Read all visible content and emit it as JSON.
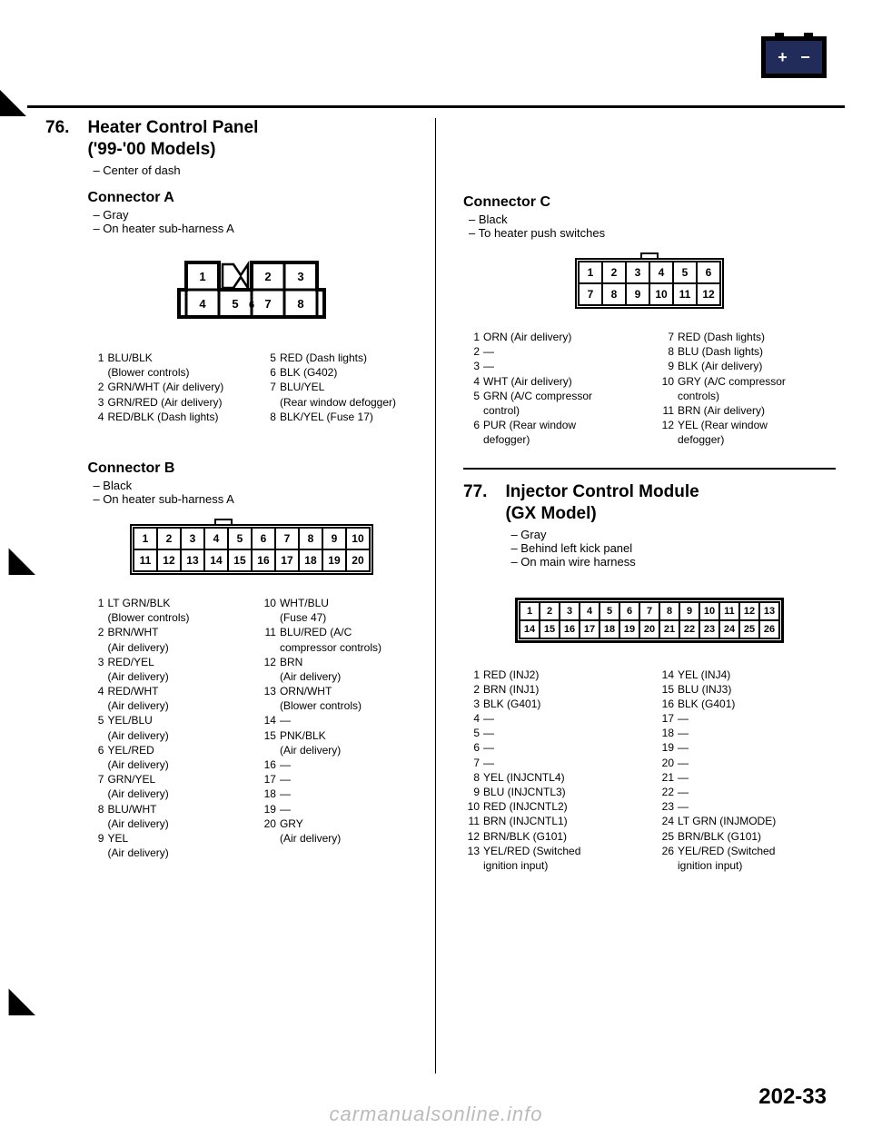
{
  "page_number": "202-33",
  "watermark": "carmanualsonline.info",
  "section76": {
    "num": "76.",
    "title": "Heater Control Panel",
    "subtitle": "('99-'00 Models)",
    "bullet1": "– Center of dash",
    "connA": {
      "title": "Connector A",
      "b1": "– Gray",
      "b2": "– On heater sub-harness A",
      "cells": [
        "1",
        "",
        "2",
        "3",
        "4",
        "5",
        "6",
        "7",
        "8"
      ],
      "left": [
        {
          "n": "1",
          "l": "BLU/BLK",
          "s": "(Blower controls)"
        },
        {
          "n": "2",
          "l": "GRN/WHT (Air delivery)"
        },
        {
          "n": "3",
          "l": "GRN/RED (Air delivery)"
        },
        {
          "n": "4",
          "l": "RED/BLK (Dash lights)"
        }
      ],
      "right": [
        {
          "n": "5",
          "l": "RED (Dash lights)"
        },
        {
          "n": "6",
          "l": "BLK (G402)"
        },
        {
          "n": "7",
          "l": "BLU/YEL",
          "s": "(Rear window defogger)"
        },
        {
          "n": "8",
          "l": "BLK/YEL (Fuse 17)"
        }
      ]
    },
    "connB": {
      "title": "Connector B",
      "b1": "– Black",
      "b2": "– On heater sub-harness A",
      "row1": [
        "1",
        "2",
        "3",
        "4",
        "5",
        "6",
        "7",
        "8",
        "9",
        "10"
      ],
      "row2": [
        "11",
        "12",
        "13",
        "14",
        "15",
        "16",
        "17",
        "18",
        "19",
        "20"
      ],
      "left": [
        {
          "n": "1",
          "l": "LT GRN/BLK",
          "s": "(Blower controls)"
        },
        {
          "n": "2",
          "l": "BRN/WHT",
          "s": "(Air delivery)"
        },
        {
          "n": "3",
          "l": "RED/YEL",
          "s": "(Air delivery)"
        },
        {
          "n": "4",
          "l": "RED/WHT",
          "s": "(Air delivery)"
        },
        {
          "n": "5",
          "l": "YEL/BLU",
          "s": "(Air delivery)"
        },
        {
          "n": "6",
          "l": "YEL/RED",
          "s": "(Air delivery)"
        },
        {
          "n": "7",
          "l": "GRN/YEL",
          "s": "(Air delivery)"
        },
        {
          "n": "8",
          "l": "BLU/WHT",
          "s": "(Air delivery)"
        },
        {
          "n": "9",
          "l": "YEL",
          "s": "(Air delivery)"
        }
      ],
      "right": [
        {
          "n": "10",
          "l": "WHT/BLU",
          "s": "(Fuse 47)"
        },
        {
          "n": "11",
          "l": "BLU/RED (A/C",
          "s": "compressor controls)"
        },
        {
          "n": "12",
          "l": "BRN",
          "s": "(Air delivery)"
        },
        {
          "n": "13",
          "l": "ORN/WHT",
          "s": "(Blower controls)"
        },
        {
          "n": "14",
          "l": "—"
        },
        {
          "n": "15",
          "l": "PNK/BLK",
          "s": "(Air delivery)"
        },
        {
          "n": "16",
          "l": "—"
        },
        {
          "n": "17",
          "l": "—"
        },
        {
          "n": "18",
          "l": "—"
        },
        {
          "n": "19",
          "l": "—"
        },
        {
          "n": "20",
          "l": "GRY",
          "s": "(Air delivery)"
        }
      ]
    },
    "connC": {
      "title": "Connector C",
      "b1": "– Black",
      "b2": "– To heater push switches",
      "row1": [
        "1",
        "2",
        "3",
        "4",
        "5",
        "6"
      ],
      "row2": [
        "7",
        "8",
        "9",
        "10",
        "11",
        "12"
      ],
      "left": [
        {
          "n": "1",
          "l": "ORN (Air delivery)"
        },
        {
          "n": "2",
          "l": "—"
        },
        {
          "n": "3",
          "l": "—"
        },
        {
          "n": "4",
          "l": "WHT (Air delivery)"
        },
        {
          "n": "5",
          "l": "GRN (A/C compressor",
          "s": "control)"
        },
        {
          "n": "6",
          "l": "PUR (Rear window",
          "s": "defogger)"
        }
      ],
      "right": [
        {
          "n": "7",
          "l": "RED (Dash lights)"
        },
        {
          "n": "8",
          "l": "BLU (Dash lights)"
        },
        {
          "n": "9",
          "l": "BLK (Air delivery)"
        },
        {
          "n": "10",
          "l": "GRY (A/C compressor",
          "s": "controls)"
        },
        {
          "n": "11",
          "l": "BRN (Air delivery)"
        },
        {
          "n": "12",
          "l": "YEL (Rear window",
          "s": "defogger)"
        }
      ]
    }
  },
  "section77": {
    "num": "77.",
    "title": "Injector Control Module",
    "subtitle": "(GX Model)",
    "b1": "– Gray",
    "b2": "– Behind left kick panel",
    "b3": "– On main wire harness",
    "row1": [
      "1",
      "2",
      "3",
      "4",
      "5",
      "6",
      "7",
      "8",
      "9",
      "10",
      "11",
      "12",
      "13"
    ],
    "row2": [
      "14",
      "15",
      "16",
      "17",
      "18",
      "19",
      "20",
      "21",
      "22",
      "23",
      "24",
      "25",
      "26"
    ],
    "left": [
      {
        "n": "1",
        "l": "RED (INJ2)"
      },
      {
        "n": "2",
        "l": "BRN (INJ1)"
      },
      {
        "n": "3",
        "l": "BLK (G401)"
      },
      {
        "n": "4",
        "l": "—"
      },
      {
        "n": "5",
        "l": "—"
      },
      {
        "n": "6",
        "l": "—"
      },
      {
        "n": "7",
        "l": "—"
      },
      {
        "n": "8",
        "l": "YEL (INJCNTL4)"
      },
      {
        "n": "9",
        "l": "BLU (INJCNTL3)"
      },
      {
        "n": "10",
        "l": "RED (INJCNTL2)"
      },
      {
        "n": "11",
        "l": "BRN (INJCNTL1)"
      },
      {
        "n": "12",
        "l": "BRN/BLK (G101)"
      },
      {
        "n": "13",
        "l": "YEL/RED (Switched",
        "s": "ignition input)"
      }
    ],
    "right": [
      {
        "n": "14",
        "l": "YEL (INJ4)"
      },
      {
        "n": "15",
        "l": "BLU (INJ3)"
      },
      {
        "n": "16",
        "l": "BLK (G401)"
      },
      {
        "n": "17",
        "l": "—"
      },
      {
        "n": "18",
        "l": "—"
      },
      {
        "n": "19",
        "l": "—"
      },
      {
        "n": "20",
        "l": "—"
      },
      {
        "n": "21",
        "l": "—"
      },
      {
        "n": "22",
        "l": "—"
      },
      {
        "n": "23",
        "l": "—"
      },
      {
        "n": "24",
        "l": "LT GRN (INJMODE)"
      },
      {
        "n": "25",
        "l": "BRN/BLK (G101)"
      },
      {
        "n": "26",
        "l": "YEL/RED (Switched",
        "s": "ignition input)"
      }
    ]
  }
}
